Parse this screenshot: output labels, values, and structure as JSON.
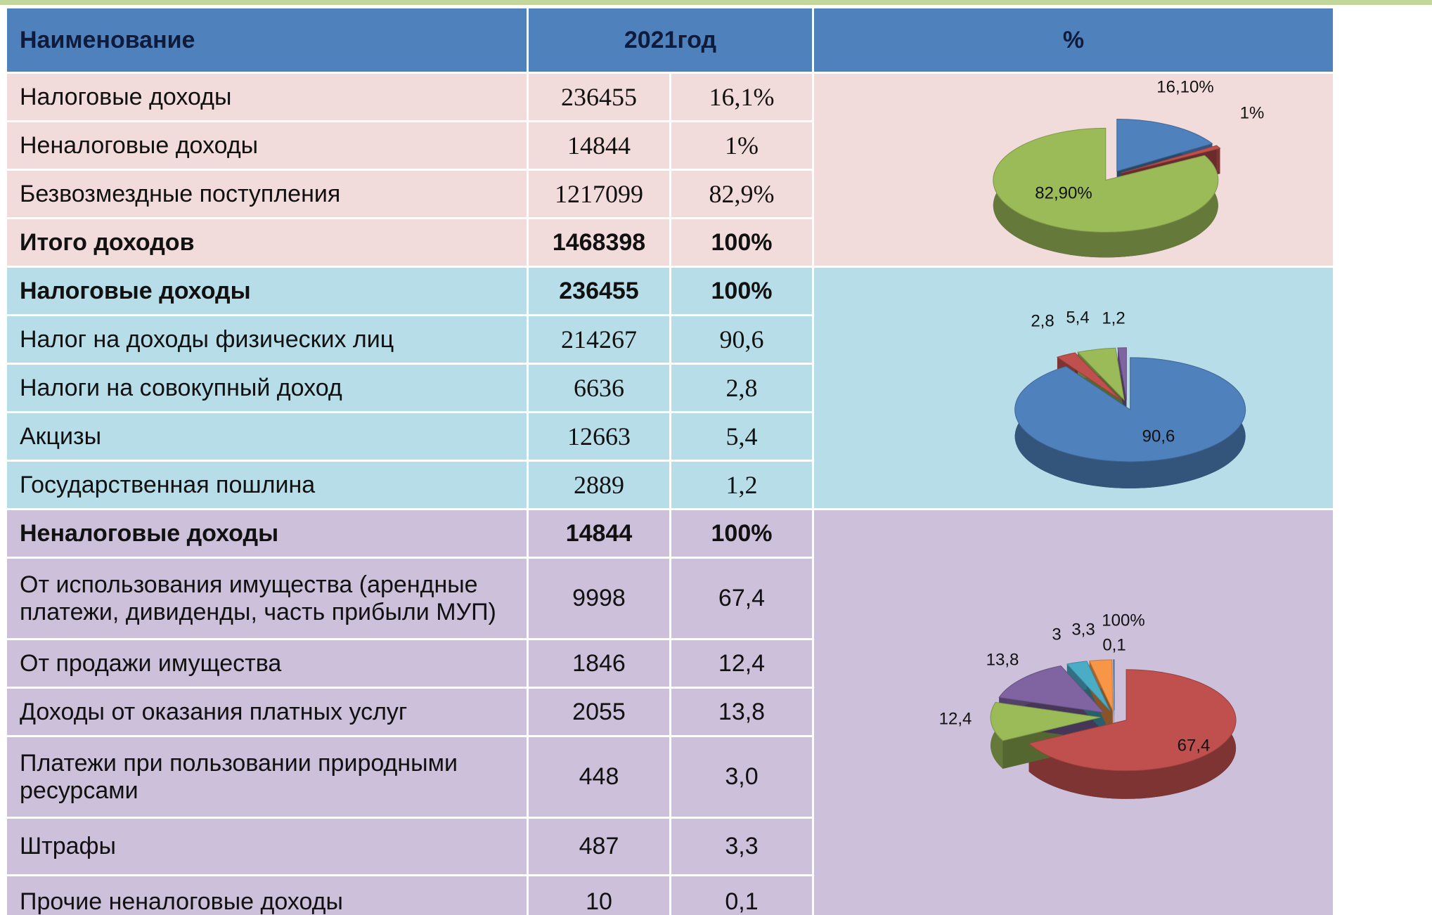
{
  "header": {
    "name": "Наименование",
    "year": "2021год",
    "percent": "%"
  },
  "sections": [
    {
      "rows": [
        {
          "name": "Налоговые доходы",
          "value": "236455",
          "percent": "16,1%",
          "bold": false
        },
        {
          "name": "Неналоговые доходы",
          "value": "14844",
          "percent": "1%",
          "bold": false
        },
        {
          "name": "Безвозмездные поступления",
          "value": "1217099",
          "percent": "82,9%",
          "bold": false
        },
        {
          "name": "Итого доходов",
          "value": "1468398",
          "percent": "100%",
          "bold": true
        }
      ],
      "pie": {
        "values": [
          16.1,
          1,
          82.9
        ],
        "value_labels": [
          "16,10%",
          "1%",
          "82,90%"
        ],
        "colors": [
          "#4f81bd",
          "#c0504d",
          "#9bbb59"
        ]
      }
    },
    {
      "rows": [
        {
          "name": "Налоговые доходы",
          "value": "236455",
          "percent": "100%",
          "bold": true
        },
        {
          "name": "Налог на доходы физических лиц",
          "value": "214267",
          "percent": "90,6",
          "bold": false
        },
        {
          "name": "Налоги на совокупный доход",
          "value": "6636",
          "percent": "2,8",
          "bold": false
        },
        {
          "name": "Акцизы",
          "value": "12663",
          "percent": "5,4",
          "bold": false
        },
        {
          "name": "Государственная пошлина",
          "value": "2889",
          "percent": "1,2",
          "bold": false
        }
      ],
      "pie": {
        "values": [
          90.6,
          2.8,
          5.4,
          1.2
        ],
        "value_labels": [
          "90,6",
          "2,8",
          "5,4",
          "1,2"
        ],
        "colors": [
          "#4f81bd",
          "#c0504d",
          "#9bbb59",
          "#8064a2"
        ]
      }
    },
    {
      "rows": [
        {
          "name": "Неналоговые доходы",
          "value": "14844",
          "percent": "100%",
          "bold": true
        },
        {
          "name": "От использования имущества (арендные платежи, дивиденды, часть прибыли МУП)",
          "value": "9998",
          "percent": "67,4",
          "bold": false
        },
        {
          "name": "От продажи имущества",
          "value": "1846",
          "percent": "12,4",
          "bold": false
        },
        {
          "name": "Доходы от оказания платных услуг",
          "value": "2055",
          "percent": "13,8",
          "bold": false
        },
        {
          "name": "Платежи при пользовании природными ресурсами",
          "value": "448",
          "percent": "3,0",
          "bold": false
        },
        {
          "name": "Штрафы",
          "value": "487",
          "percent": "3,3",
          "bold": false
        },
        {
          "name": "Прочие неналоговые доходы",
          "value": "10",
          "percent": "0,1",
          "bold": false
        }
      ],
      "pie": {
        "values": [
          67.4,
          12.4,
          13.8,
          3,
          3.3,
          0.1
        ],
        "value_labels": [
          "67,4",
          "12,4",
          "13,8",
          "3",
          "3,3",
          "0,1"
        ],
        "colors": [
          "#c0504d",
          "#9bbb59",
          "#8064a2",
          "#4bacc6",
          "#f79646",
          "#4f81bd"
        ],
        "annotation": "100%"
      }
    }
  ]
}
